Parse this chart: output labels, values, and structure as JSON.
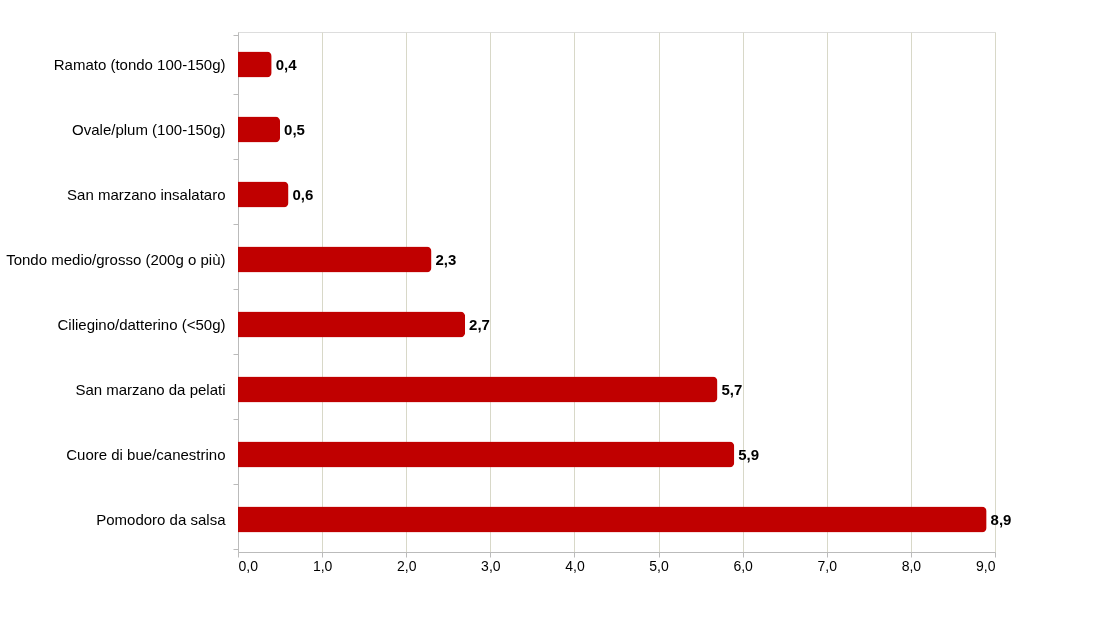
{
  "chart_data": {
    "type": "bar",
    "orientation": "horizontal",
    "categories": [
      "Ramato (tondo 100-150g)",
      "Ovale/plum (100-150g)",
      "San marzano insalataro",
      "Tondo medio/grosso (200g o più)",
      "Ciliegino/datterino (<50g)",
      "San marzano da pelati",
      "Cuore di bue/canestrino",
      "Pomodoro da salsa"
    ],
    "values": [
      0.4,
      0.5,
      0.6,
      2.3,
      2.7,
      5.7,
      5.9,
      8.9
    ],
    "value_labels": [
      "0,4",
      "0,5",
      "0,6",
      "2,3",
      "2,7",
      "5,7",
      "5,9",
      "8,9"
    ],
    "color": "#c00000",
    "xlim": [
      0,
      9
    ],
    "xticks": [
      {
        "value": 0,
        "label": "0,0"
      },
      {
        "value": 1,
        "label": "1,0"
      },
      {
        "value": 2,
        "label": "2,0"
      },
      {
        "value": 3,
        "label": "3,0"
      },
      {
        "value": 4,
        "label": "4,0"
      },
      {
        "value": 5,
        "label": "5,0"
      },
      {
        "value": 6,
        "label": "6,0"
      },
      {
        "value": 7,
        "label": "7,0"
      },
      {
        "value": 8,
        "label": "8,0"
      },
      {
        "value": 9,
        "label": "9,0"
      }
    ],
    "grid": "x"
  }
}
